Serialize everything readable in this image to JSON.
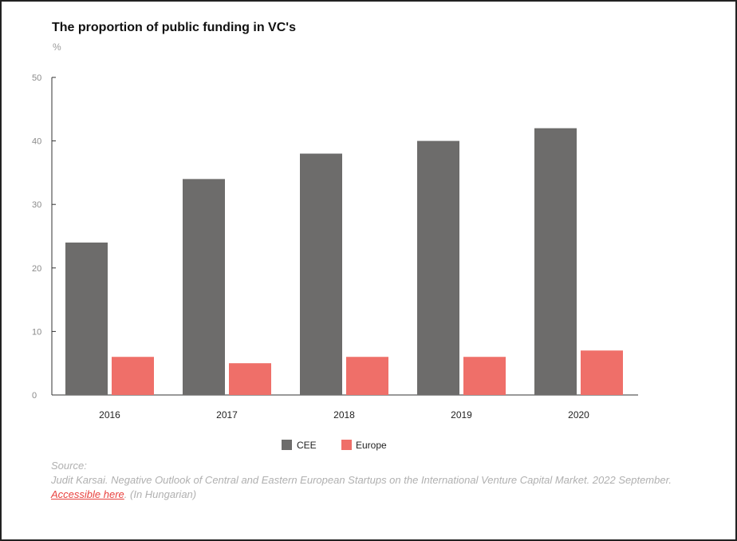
{
  "chart_data": {
    "type": "bar",
    "title": "The proportion of public funding  in VC's",
    "ylabel": "%",
    "xlabel": "",
    "categories": [
      "2016",
      "2017",
      "2018",
      "2019",
      "2020"
    ],
    "series": [
      {
        "name": "CEE",
        "color": "#6d6c6b",
        "values": [
          24,
          34,
          38,
          40,
          42
        ]
      },
      {
        "name": "Europe",
        "color": "#ef6f69",
        "values": [
          6,
          5,
          6,
          6,
          7
        ]
      }
    ],
    "ylim": [
      0,
      50
    ],
    "yticks": [
      0,
      10,
      20,
      30,
      40,
      50
    ],
    "grid": false,
    "legend": "bottom-center"
  },
  "source": {
    "label": "Source:",
    "text": "Judit Karsai. Negative Outlook of Central and Eastern European Startups on the International Venture Capital Market. 2022 September.",
    "link_text": "Accessible here",
    "note": ". (In Hungarian)"
  }
}
